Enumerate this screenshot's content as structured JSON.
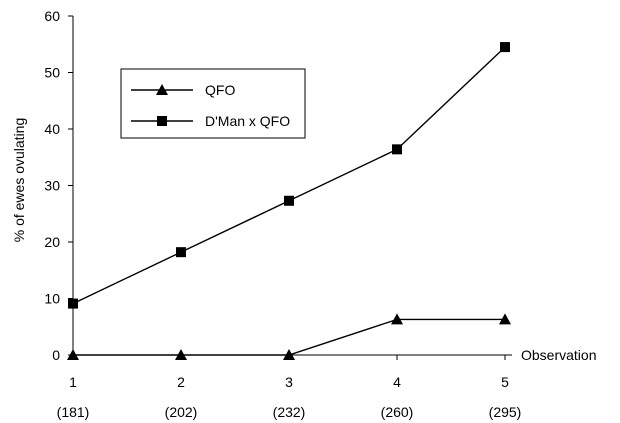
{
  "chart_data": {
    "type": "line",
    "title": "",
    "ylabel": "% of ewes ovulating",
    "xlabel": "Observation",
    "ylim": [
      0,
      60
    ],
    "yticks": [
      0,
      10,
      20,
      30,
      40,
      50,
      60
    ],
    "ytick_labels": [
      "0",
      "10",
      "20",
      "30",
      "40",
      "50",
      "60"
    ],
    "categories": [
      "1",
      "2",
      "3",
      "4",
      "5"
    ],
    "sublabels": [
      "(181)",
      "(202)",
      "(232)",
      "(260)",
      "(295)"
    ],
    "series": [
      {
        "name": "QFO",
        "marker": "triangle",
        "values": [
          0,
          0,
          0,
          6.3,
          6.3
        ]
      },
      {
        "name": "D'Man x QFO",
        "marker": "square",
        "values": [
          9.1,
          18.2,
          27.3,
          36.4,
          54.5
        ]
      }
    ],
    "grid": false,
    "legend": "top-left"
  }
}
